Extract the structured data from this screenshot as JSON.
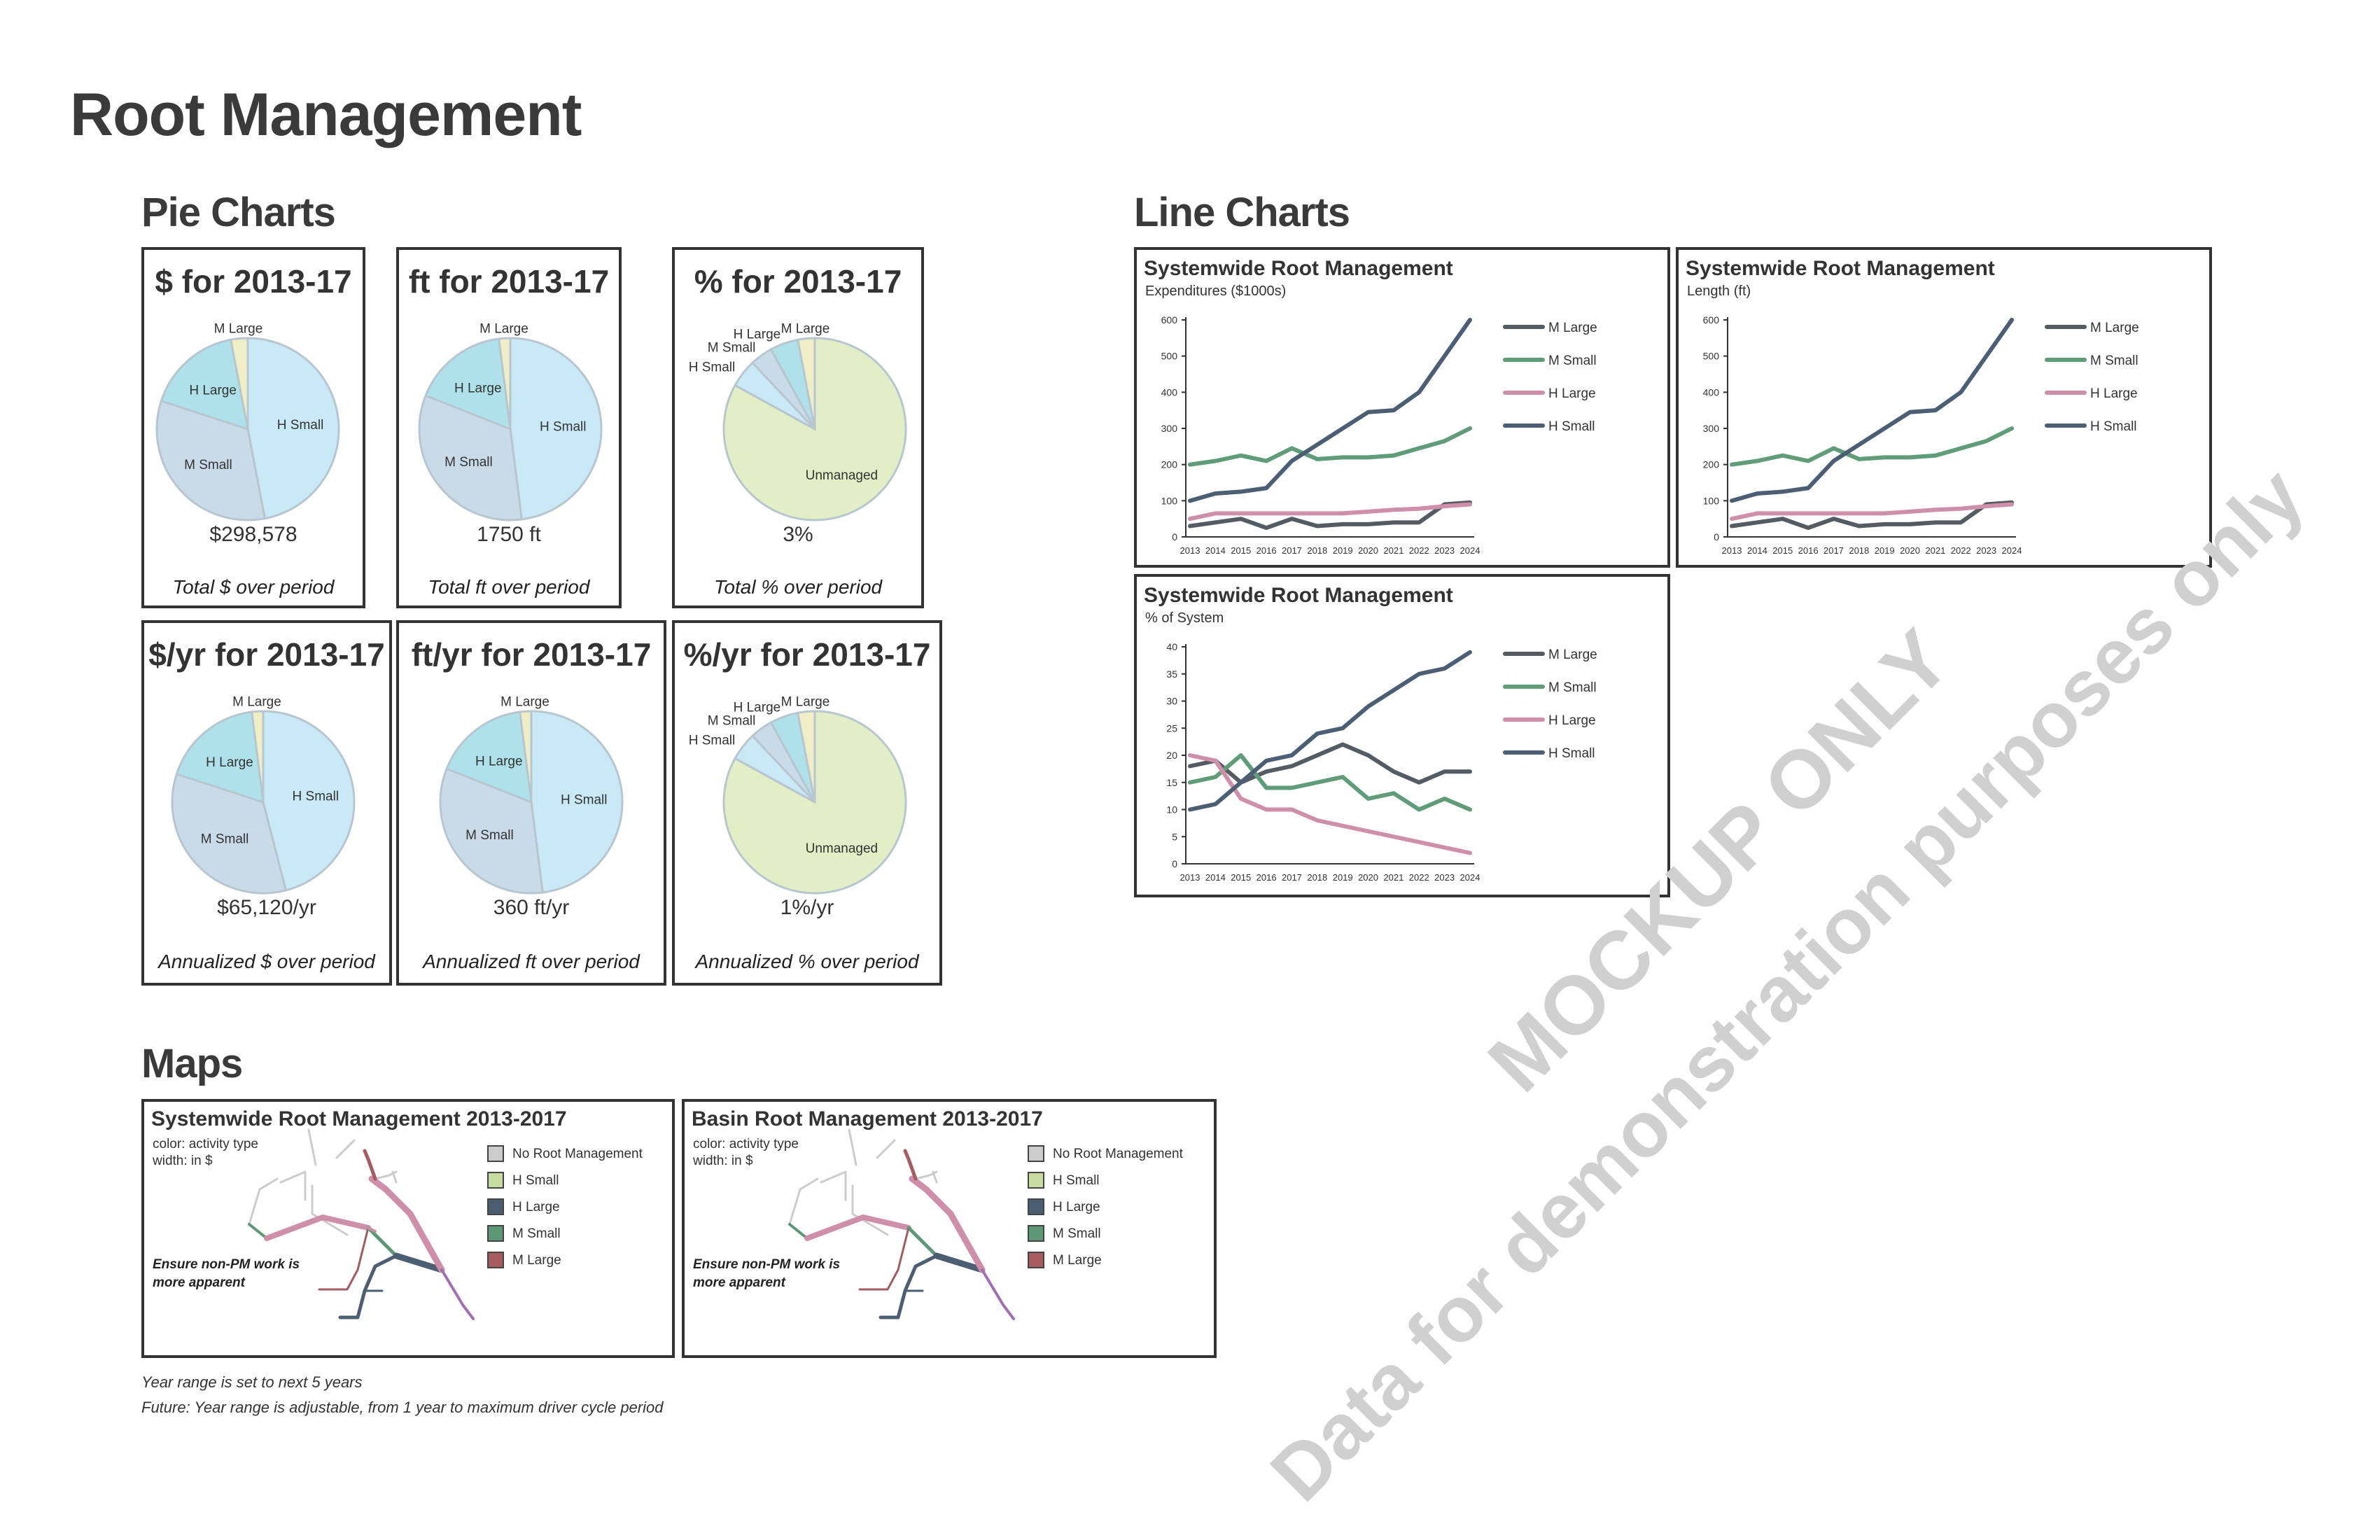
{
  "page": {
    "title": "Root Management",
    "section_pie": "Pie Charts",
    "section_line": "Line Charts",
    "section_maps": "Maps",
    "footnotes": [
      "Year range is set to next 5 years",
      "Future: Year range is adjustable, from 1 year to maximum driver cycle period"
    ],
    "watermark_line1": "MOCKUP ONLY",
    "watermark_line2": "Data for demonstration purposes only"
  },
  "colors": {
    "h_small_pie": "#c9e9f7",
    "m_small_pie": "#c9dbe8",
    "h_large_pie": "#aee1ea",
    "m_large_pie": "#efeec6",
    "unmanaged_pie": "#e2efc6",
    "m_large_line": "#555b62",
    "m_small_line": "#5e9c7a",
    "h_large_line": "#cf8fa9",
    "h_small_line": "#4b5e73",
    "map_no_root": "#cccccc",
    "map_h_small": "#c8dca0",
    "map_h_large": "#4c5f72",
    "map_m_small": "#5d9776",
    "map_m_large": "#a65b5f"
  },
  "chart_data": [
    {
      "type": "pie",
      "title": "$ for 2013-17",
      "categories": [
        "H Small",
        "M Small",
        "H Large",
        "M Large"
      ],
      "values": [
        47,
        33,
        17,
        3
      ],
      "value_text": "$298,578",
      "caption": "Total $ over period"
    },
    {
      "type": "pie",
      "title": "ft for 2013-17",
      "categories": [
        "H Small",
        "M Small",
        "H Large",
        "M Large"
      ],
      "values": [
        48,
        33,
        17,
        2
      ],
      "value_text": "1750 ft",
      "caption": "Total ft over period"
    },
    {
      "type": "pie",
      "title": "% for 2013-17",
      "categories": [
        "Unmanaged",
        "H Small",
        "M Small",
        "H Large",
        "M Large"
      ],
      "values": [
        83,
        5,
        4,
        5,
        3
      ],
      "value_text": "3%",
      "caption": "Total % over period"
    },
    {
      "type": "pie",
      "title": "$/yr for 2013-17",
      "categories": [
        "H Small",
        "M Small",
        "H Large",
        "M Large"
      ],
      "values": [
        46,
        34,
        18,
        2
      ],
      "value_text": "$65,120/yr",
      "caption": "Annualized $ over period"
    },
    {
      "type": "pie",
      "title": "ft/yr for 2013-17",
      "categories": [
        "H Small",
        "M Small",
        "H Large",
        "M Large"
      ],
      "values": [
        48,
        33,
        17,
        2
      ],
      "value_text": "360 ft/yr",
      "caption": "Annualized ft over period"
    },
    {
      "type": "pie",
      "title": "%/yr for 2013-17",
      "categories": [
        "Unmanaged",
        "H Small",
        "M Small",
        "H Large",
        "M Large"
      ],
      "values": [
        83,
        5,
        4,
        5,
        3
      ],
      "value_text": "1%/yr",
      "caption": "Annualized % over period"
    },
    {
      "type": "line",
      "title": "Systemwide Root Management",
      "subtitle": "Expenditures ($1000s)",
      "x": [
        "2013",
        "2014",
        "2015",
        "2016",
        "2017",
        "2018",
        "2019",
        "2020",
        "2021",
        "2022",
        "2023",
        "2024"
      ],
      "yticks": [
        0,
        100,
        200,
        300,
        400,
        500,
        600
      ],
      "ylim": [
        0,
        600
      ],
      "series": [
        {
          "name": "M Large",
          "values": [
            30,
            40,
            50,
            25,
            50,
            30,
            35,
            35,
            40,
            40,
            90,
            95
          ]
        },
        {
          "name": "M Small",
          "values": [
            200,
            210,
            225,
            210,
            245,
            215,
            220,
            220,
            225,
            245,
            265,
            300
          ]
        },
        {
          "name": "H Large",
          "values": [
            50,
            65,
            65,
            65,
            65,
            65,
            65,
            70,
            75,
            78,
            85,
            90
          ]
        },
        {
          "name": "H Small",
          "values": [
            100,
            120,
            125,
            135,
            210,
            255,
            300,
            345,
            350,
            400,
            500,
            600
          ]
        }
      ]
    },
    {
      "type": "line",
      "title": "Systemwide Root Management",
      "subtitle": "Length (ft)",
      "x": [
        "2013",
        "2014",
        "2015",
        "2016",
        "2017",
        "2018",
        "2019",
        "2020",
        "2021",
        "2022",
        "2023",
        "2024"
      ],
      "yticks": [
        0,
        100,
        200,
        300,
        400,
        500,
        600
      ],
      "ylim": [
        0,
        600
      ],
      "series": [
        {
          "name": "M Large",
          "values": [
            30,
            40,
            50,
            25,
            50,
            30,
            35,
            35,
            40,
            40,
            90,
            95
          ]
        },
        {
          "name": "M Small",
          "values": [
            200,
            210,
            225,
            210,
            245,
            215,
            220,
            220,
            225,
            245,
            265,
            300
          ]
        },
        {
          "name": "H Large",
          "values": [
            50,
            65,
            65,
            65,
            65,
            65,
            65,
            70,
            75,
            78,
            85,
            90
          ]
        },
        {
          "name": "H Small",
          "values": [
            100,
            120,
            125,
            135,
            210,
            255,
            300,
            345,
            350,
            400,
            500,
            600
          ]
        }
      ]
    },
    {
      "type": "line",
      "title": "Systemwide Root Management",
      "subtitle": "% of System",
      "x": [
        "2013",
        "2014",
        "2015",
        "2016",
        "2017",
        "2018",
        "2019",
        "2020",
        "2021",
        "2022",
        "2023",
        "2024"
      ],
      "yticks": [
        0,
        5,
        10,
        15,
        20,
        25,
        30,
        35,
        40
      ],
      "ylim": [
        0,
        40
      ],
      "series": [
        {
          "name": "M Large",
          "values": [
            18,
            19,
            15,
            17,
            18,
            20,
            22,
            20,
            17,
            15,
            17,
            17
          ]
        },
        {
          "name": "M Small",
          "values": [
            15,
            16,
            20,
            14,
            14,
            15,
            16,
            12,
            13,
            10,
            12,
            10
          ]
        },
        {
          "name": "H Large",
          "values": [
            20,
            19,
            12,
            10,
            10,
            8,
            7,
            6,
            5,
            4,
            3,
            2
          ]
        },
        {
          "name": "H Small",
          "values": [
            10,
            11,
            15,
            19,
            20,
            24,
            25,
            29,
            32,
            35,
            36,
            39
          ]
        }
      ]
    }
  ],
  "maps": [
    {
      "title": "Systemwide Root Management 2013-2017",
      "color_note": "color: activity type",
      "width_note": "width: in $",
      "note": "Ensure non-PM work is more apparent",
      "legend": [
        "No Root Management",
        "H Small",
        "H Large",
        "M Small",
        "M Large"
      ]
    },
    {
      "title": "Basin Root Management 2013-2017",
      "color_note": "color: activity type",
      "width_note": "width: in $",
      "note": "Ensure non-PM work is more apparent",
      "legend": [
        "No Root Management",
        "H Small",
        "H Large",
        "M Small",
        "M Large"
      ]
    }
  ]
}
